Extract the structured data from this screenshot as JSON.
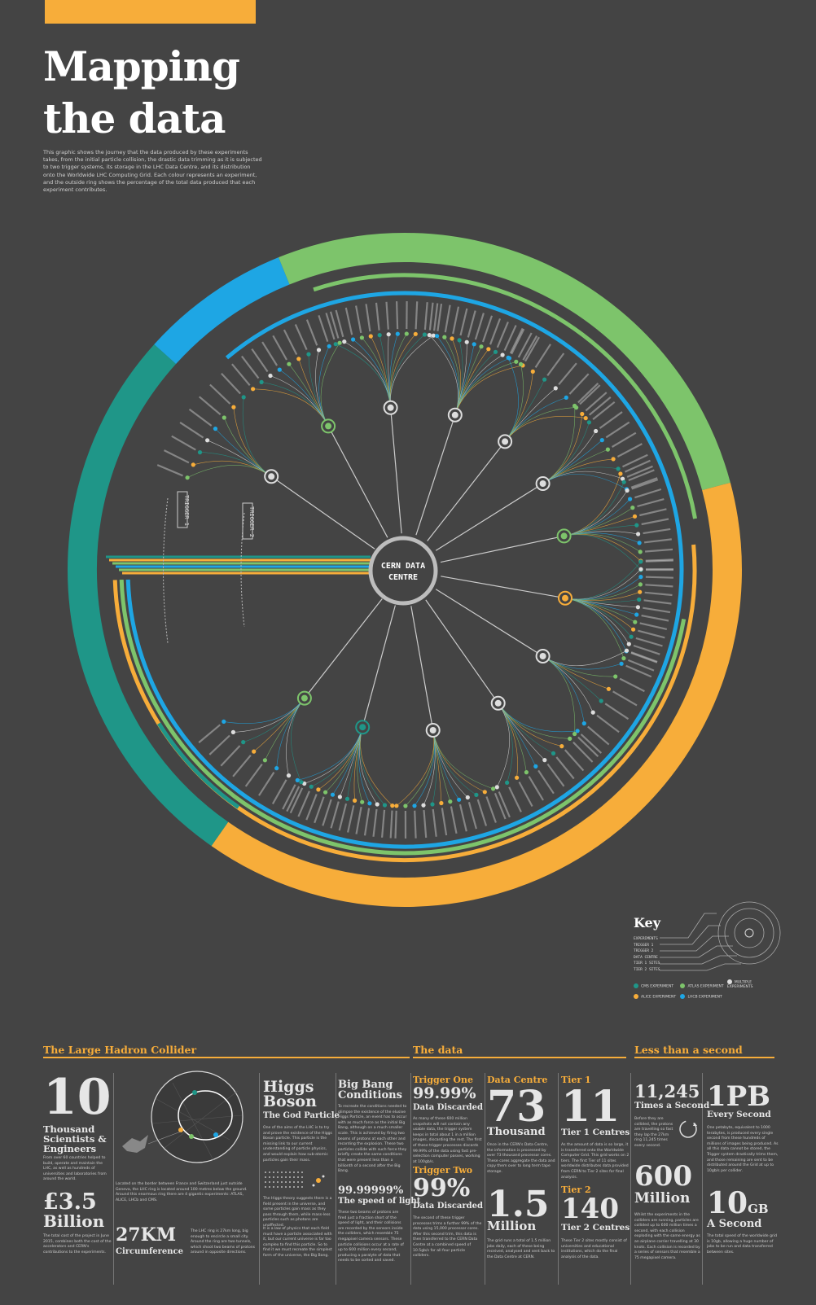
{
  "header": {
    "title_line1": "Mapping",
    "title_line2": "the data",
    "intro": "This graphic shows the journey that the data produced by these experiments takes, from the initial particle collision, the drastic data trimming as it is subjected to two trigger systems, its storage in the LHC Data Centre, and its distribution onto the Worldwide LHC Computing Grid. Each colour represents an experiment, and the outside ring shows the percentage of the total data produced that each experiment contributes."
  },
  "diagram": {
    "centre_line1": "CERN DATA",
    "centre_line2": "CENTRE",
    "trigger1": "TRIGGER 1",
    "trigger2": "TRIGGER 2",
    "colors": {
      "cms": "#1f9688",
      "atlas": "#7dc46b",
      "alice": "#f7ad3a",
      "lhcb": "#1ea6e4",
      "multiple": "#dddddd",
      "bg": "#444444"
    }
  },
  "key": {
    "title": "Key",
    "rows": [
      "EXPERIMENTS",
      "TRIGGER 1",
      "TRIGGER 2",
      "DATA CENTRE",
      "TIER 1 SITES",
      "TIER 2 SITES"
    ],
    "legend": [
      {
        "label": "CMS EXPERIMENT",
        "color": "#1f9688"
      },
      {
        "label": "ATLAS EXPERIMENT",
        "color": "#7dc46b"
      },
      {
        "label": "MULTIPLE EXPERIMENTS",
        "color": "#dddddd"
      },
      {
        "label": "ALICE EXPERIMENT",
        "color": "#f7ad3a"
      },
      {
        "label": "LHCB EXPERIMENT",
        "color": "#1ea6e4"
      }
    ]
  },
  "lhc": {
    "heading": "The Large Hadron Collider",
    "scientists_num": "10",
    "scientists_label": "Thousand Scientists & Engineers",
    "scientists_body": "From over 60 countries helped to build, operate and maintain the LHC, as well as hundreds of universities and laboratories from around the world.",
    "cost_num": "£3.5",
    "cost_unit": "Billion",
    "cost_body": "The total cost of the project in June 2015, combines both the cost of the accelerators and CERN's contributions to the experiments.",
    "location_body": "Located on the border between France and Switzerland just outside Geneva, the LHC ring is located around 100 metres below the ground. Around this enormous ring there are 4 gigantic experiments: ATLAS, ALICE, LHCb and CMS.",
    "circ_num": "27KM",
    "circ_label": "Circumference",
    "circ_body": "The LHC ring is 27km long, big enough to encircle a small city. Around the ring are two tunnels, which shoot two beams of protons around in opposite directions.",
    "higgs_title": "Higgs Boson",
    "higgs_sub": "The God Particle",
    "higgs_body": "One of the aims of the LHC is to try and prove the existence of the Higgs Boson particle. This particle is the missing link to our current understanding of particle physics, and would explain how sub-atomic particles gain their mass.",
    "higgs_body2": "The Higgs theory suggests there is a field present in the universe, and some particles gain mass as they pass through them, while mass-less particles such as photons are unaffected.",
    "higgs_body3": "It is a law of physics that each field must have a particle associated with it, but our current universe is far too complex to find this particle. So to find it we must recreate the simplest form of the universe, the Big Bang.",
    "bigbang_title": "Big Bang Conditions",
    "bigbang_body": "To recreate the conditions needed to glimpse the existence of the elusive Higgs Particle, an event has to occur with as much force as the initial Big Bang, although on a much smaller scale. This is achieved by firing two beams of protons at each other and recording the explosion. These two particles collide with such force they briefly create the same conditions that were present less than a billionth of a second after the Big Bang.",
    "speed_num": "99.99999%",
    "speed_label": "The speed of light",
    "speed_body": "These two beams of protons are fired just a fraction short of the speed of light, and their collisions are recorded by the sensors inside the colliders, which resemble 75 megapixel camera sensors. These particle collisions occur at a rate of up to 600 million every second, producing a paralyte of data that needs to be sorted and saved."
  },
  "data": {
    "heading": "The data",
    "t1_label": "Trigger One",
    "t1_num": "99.99%",
    "t1_sub": "Data Discarded",
    "t1_body": "As many of these 600 million snapshots will not contain any usable data, the trigger system keeps in total about 1 in a million images, discarding the rest. The first of these trigger processes discards 99.99% of the data using fast pre-selection computer passes, working at 100gb/s.",
    "t2_label": "Trigger Two",
    "t2_num": "99%",
    "t2_sub": "Data Discarded",
    "t2_body": "The second of these trigger processes trims a further 99% of the data using 15,000 processor cores. After this second trim, this data is then transferred to the CERN Data Centre at a combined speed of 10.5gb/s for all four particle colliders.",
    "dc_label": "Data Centre",
    "dc_num": "73",
    "dc_unit": "Thousand",
    "dc_body": "Once in the CERN's Data Centre, the information is processed by over 73 thousand processor cores. These cores aggregate the data and copy them over to long term tape storage.",
    "dc2_num": "1.5",
    "dc2_unit": "Million",
    "dc2_body": "The grid runs a total of 1.5 million jobs daily, each of these being received, analysed and sent back to the Data Centre at CERN.",
    "tier1_label": "Tier 1",
    "tier1_num": "11",
    "tier1_sub": "Tier 1 Centres",
    "tier1_body": "As the amount of data is so large, it is transferred onto the Worldwide Computer Grid. This grid works on 2 tiers. The first Tier of 11 sites worldwide distributes data provided from CERN to Tier 2 sites for final analysis.",
    "tier2_label": "Tier 2",
    "tier2_num": "140",
    "tier2_sub": "Tier 2 Centres",
    "tier2_body": "These Tier 2 sites mostly consist of universities and educational institutions, which do the final analysis of the data."
  },
  "second": {
    "heading": "Less than a second",
    "times_num": "11,245",
    "times_label": "Times a Second",
    "times_body": "Before they are collided, the protons are travelling so fast they lap the 27km ring 11,245 times every second.",
    "pb_num": "1PB",
    "pb_label": "Every Second",
    "pb_body": "One petabyte, equivalent to 1000 terabytes, is produced every single second from these hundreds of millions of images being produced. As all this data cannot be stored, the Trigger system drastically trims them, and those remaining are sent to be distributed around the Grid at up to 10gb/s per collider.",
    "million_num": "600",
    "million_unit": "Million",
    "million_body": "Whilst the experiments in the colliders are running, particles are collided up to 600 million times a second, with each collision exploding with the same energy as an airplane carrier travelling at 30 knots. Each collision is recorded by a series of sensors that resemble a 75 megapixel camera.",
    "gb_num": "10",
    "gb_unit": "GB",
    "gb_label": "A Second",
    "gb_body": "The total speed of the worldwide grid is 10gb, allowing a huge number of jobs to be run and data transferred between sites."
  }
}
